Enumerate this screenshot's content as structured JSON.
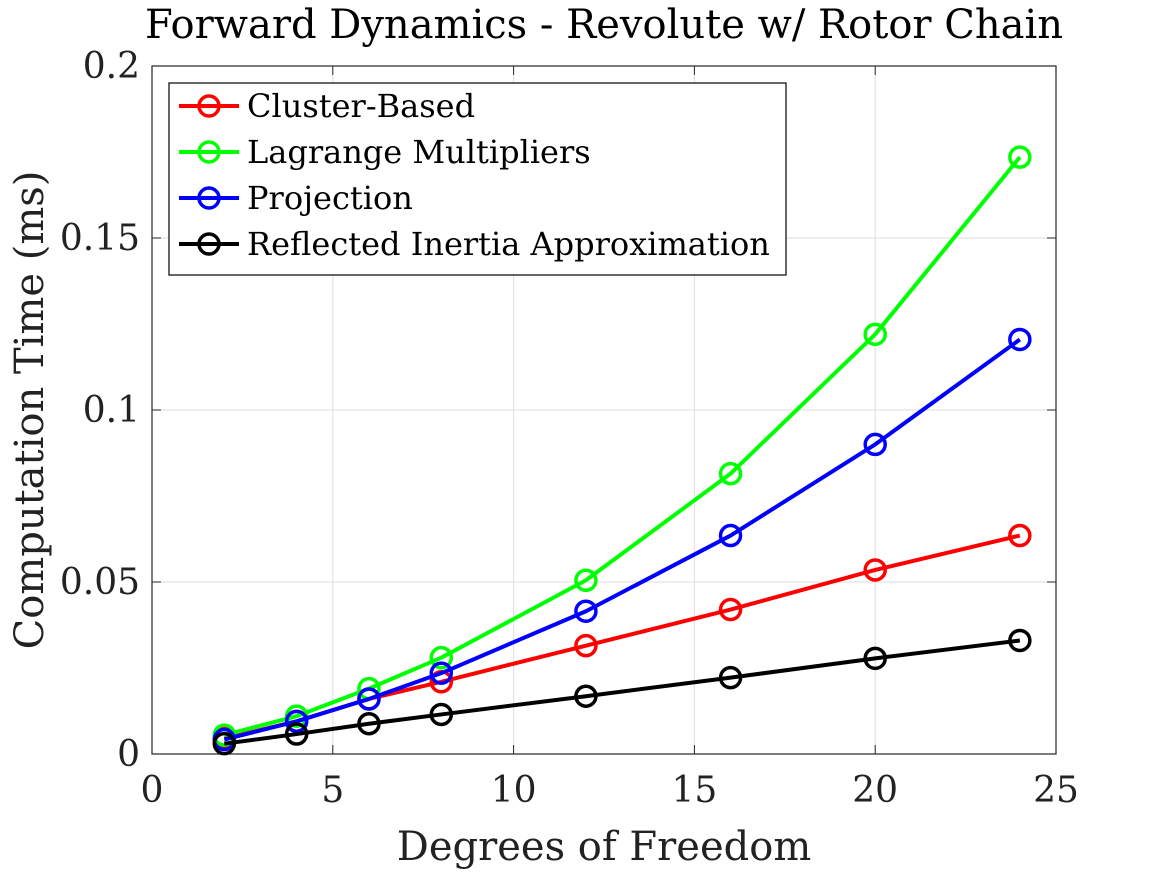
{
  "chart_data": {
    "type": "line",
    "title": "Forward Dynamics - Revolute w/ Rotor Chain",
    "xlabel": "Degrees of Freedom",
    "ylabel": "Computation Time (ms)",
    "xlim": [
      0,
      25
    ],
    "ylim": [
      0,
      0.2
    ],
    "xticks": [
      0,
      5,
      10,
      15,
      20,
      25
    ],
    "xtick_labels": [
      "0",
      "5",
      "10",
      "15",
      "20",
      "25"
    ],
    "yticks": [
      0,
      0.05,
      0.1,
      0.15,
      0.2
    ],
    "ytick_labels": [
      "0",
      "0.05",
      "0.1",
      "0.15",
      "0.2"
    ],
    "grid": true,
    "legend_position": "top-left",
    "x": [
      2,
      4,
      6,
      8,
      12,
      16,
      20,
      24
    ],
    "series": [
      {
        "name": "Cluster-Based",
        "color": "#ff0000",
        "values": [
          0.0045,
          0.0095,
          0.016,
          0.021,
          0.0315,
          0.042,
          0.0535,
          0.0635
        ]
      },
      {
        "name": "Lagrange Multipliers",
        "color": "#00ff00",
        "values": [
          0.0055,
          0.011,
          0.019,
          0.028,
          0.0505,
          0.0815,
          0.122,
          0.1735
        ]
      },
      {
        "name": "Projection",
        "color": "#0000ff",
        "values": [
          0.0042,
          0.0095,
          0.016,
          0.0235,
          0.0415,
          0.0635,
          0.09,
          0.1205
        ]
      },
      {
        "name": "Reflected Inertia Approximation",
        "color": "#000000",
        "values": [
          0.003,
          0.0058,
          0.0088,
          0.0115,
          0.0168,
          0.0222,
          0.0278,
          0.033
        ]
      }
    ]
  }
}
